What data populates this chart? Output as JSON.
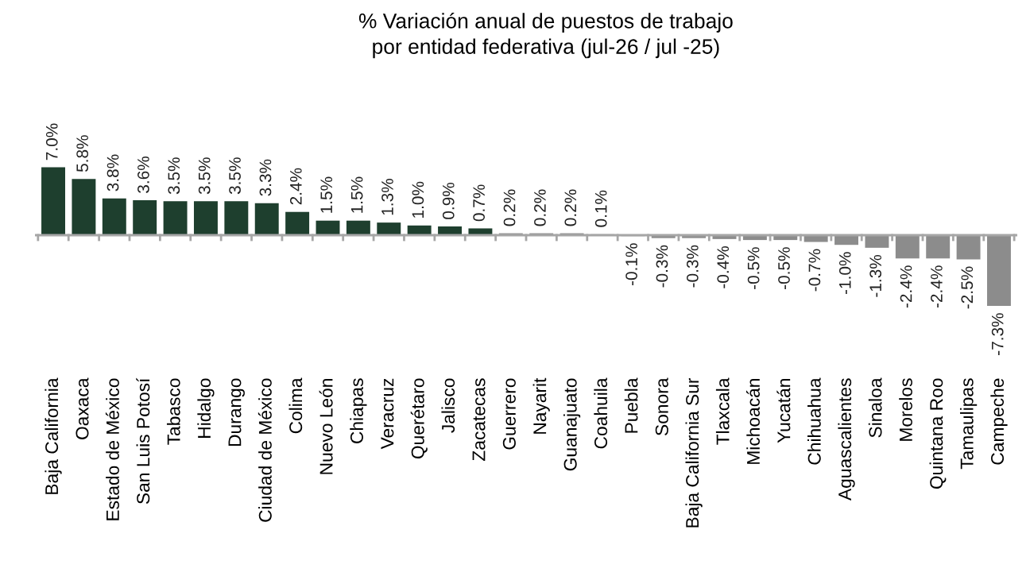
{
  "chart_data": {
    "type": "bar",
    "title": "% Variación anual de puestos de trabajo\npor entidad federativa (jul-26 / jul -25)",
    "categories": [
      "Baja California",
      "Oaxaca",
      "Estado de México",
      "San Luis Potosí",
      "Tabasco",
      "Hidalgo",
      "Durango",
      "Ciudad de México",
      "Colima",
      "Nuevo León",
      "Chiapas",
      "Veracruz",
      "Querétaro",
      "Jalisco",
      "Zacatecas",
      "Guerrero",
      "Nayarit",
      "Guanajuato",
      "Coahuila",
      "Puebla",
      "Sonora",
      "Baja California Sur",
      "Tlaxcala",
      "Michoacán",
      "Yucatán",
      "Chihuahua",
      "Aguascalientes",
      "Sinaloa",
      "Morelos",
      "Quintana Roo",
      "Tamaulipas",
      "Campeche"
    ],
    "values": [
      7.0,
      5.8,
      3.8,
      3.6,
      3.5,
      3.5,
      3.5,
      3.3,
      2.4,
      1.5,
      1.5,
      1.3,
      1.0,
      0.9,
      0.7,
      0.2,
      0.2,
      0.2,
      0.1,
      -0.1,
      -0.3,
      -0.3,
      -0.4,
      -0.5,
      -0.5,
      -0.7,
      -1.0,
      -1.3,
      -2.4,
      -2.4,
      -2.5,
      -7.3
    ],
    "value_labels": [
      "7.0%",
      "5.8%",
      "3.8%",
      "3.6%",
      "3.5%",
      "3.5%",
      "3.5%",
      "3.3%",
      "2.4%",
      "1.5%",
      "1.5%",
      "1.3%",
      "1.0%",
      "0.9%",
      "0.7%",
      "0.2%",
      "0.2%",
      "0.2%",
      "0.1%",
      "-0.1%",
      "-0.3%",
      "-0.3%",
      "-0.4%",
      "-0.5%",
      "-0.5%",
      "-0.7%",
      "-1.0%",
      "-1.3%",
      "-2.4%",
      "-2.4%",
      "-2.5%",
      "-7.3%"
    ],
    "colors": [
      "#1e3f2e",
      "#1e3f2e",
      "#1e3f2e",
      "#1e3f2e",
      "#1e3f2e",
      "#1e3f2e",
      "#1e3f2e",
      "#1e3f2e",
      "#1e3f2e",
      "#1e3f2e",
      "#1e3f2e",
      "#1e3f2e",
      "#1e3f2e",
      "#1e3f2e",
      "#1e3f2e",
      "#8c8c8c",
      "#8c8c8c",
      "#8c8c8c",
      "#8c8c8c",
      "#8c8c8c",
      "#8c8c8c",
      "#8c8c8c",
      "#8c8c8c",
      "#8c8c8c",
      "#8c8c8c",
      "#8c8c8c",
      "#8c8c8c",
      "#8c8c8c",
      "#8c8c8c",
      "#8c8c8c",
      "#8c8c8c",
      "#8c8c8c"
    ],
    "grid": false,
    "legend": false
  }
}
